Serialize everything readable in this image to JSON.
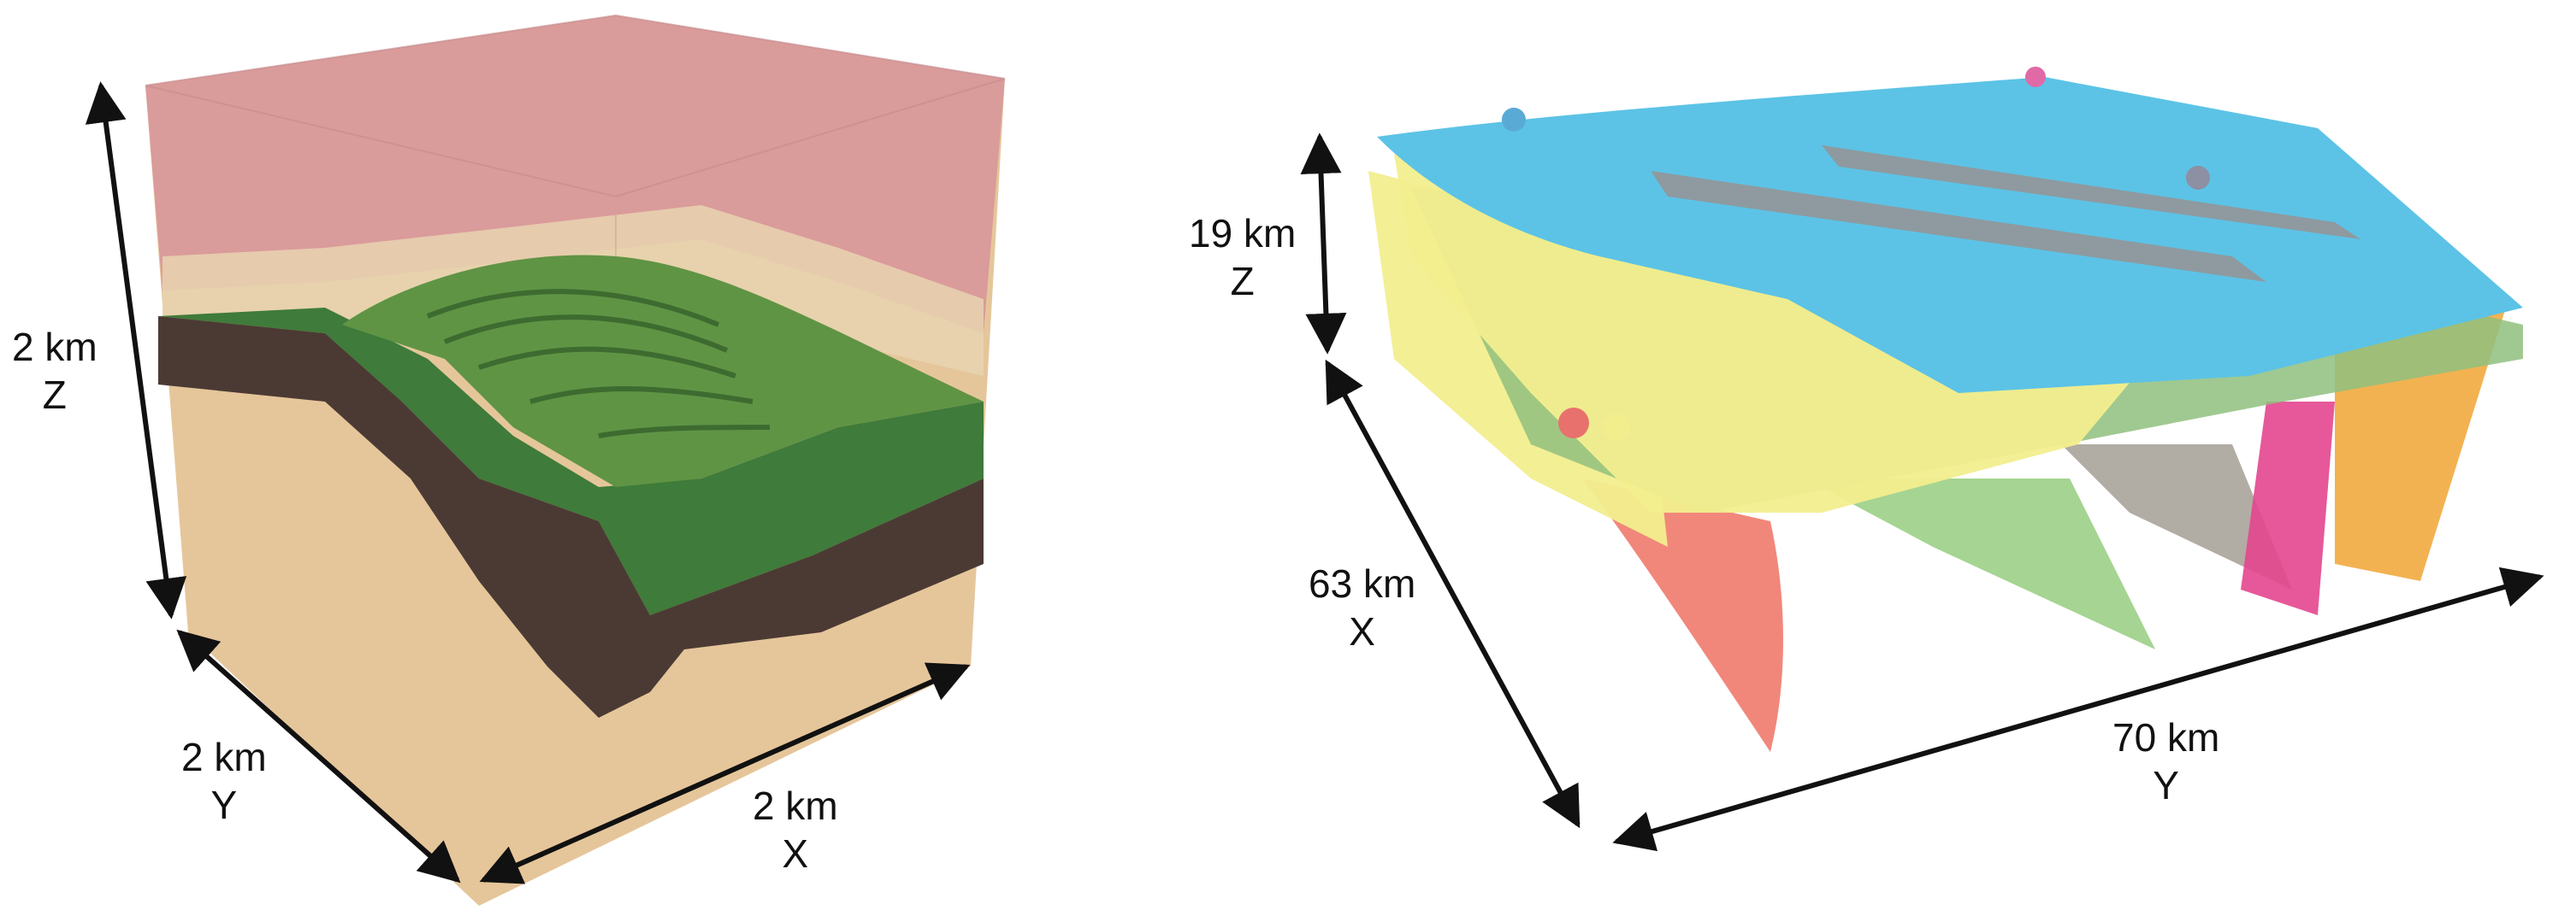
{
  "left_model": {
    "z_dimension": {
      "value": "2 km",
      "axis": "Z"
    },
    "y_dimension": {
      "value": "2 km",
      "axis": "Y"
    },
    "x_dimension": {
      "value": "2 km",
      "axis": "X"
    },
    "colors": {
      "top_volume": "#d9999b",
      "green_layer": "#3f7b3a",
      "green_surface": "#5f9444",
      "dark_layer": "#4b3a34",
      "base_volume": "#e2c08f",
      "light_band": "#e8d3b0"
    }
  },
  "right_model": {
    "z_dimension": {
      "value": "19 km",
      "axis": "Z"
    },
    "x_dimension": {
      "value": "63 km",
      "axis": "X"
    },
    "y_dimension": {
      "value": "70 km",
      "axis": "Y"
    },
    "colors": {
      "blue_surface": "#5cc3e6",
      "yellow_surface": "#f2ee8e",
      "green_surface": "#9ccf86",
      "red_surface": "#f07a6c",
      "grey_surface": "#a8a39a",
      "magenta_surface": "#e3468e",
      "orange_surface": "#f2aa3e"
    }
  }
}
